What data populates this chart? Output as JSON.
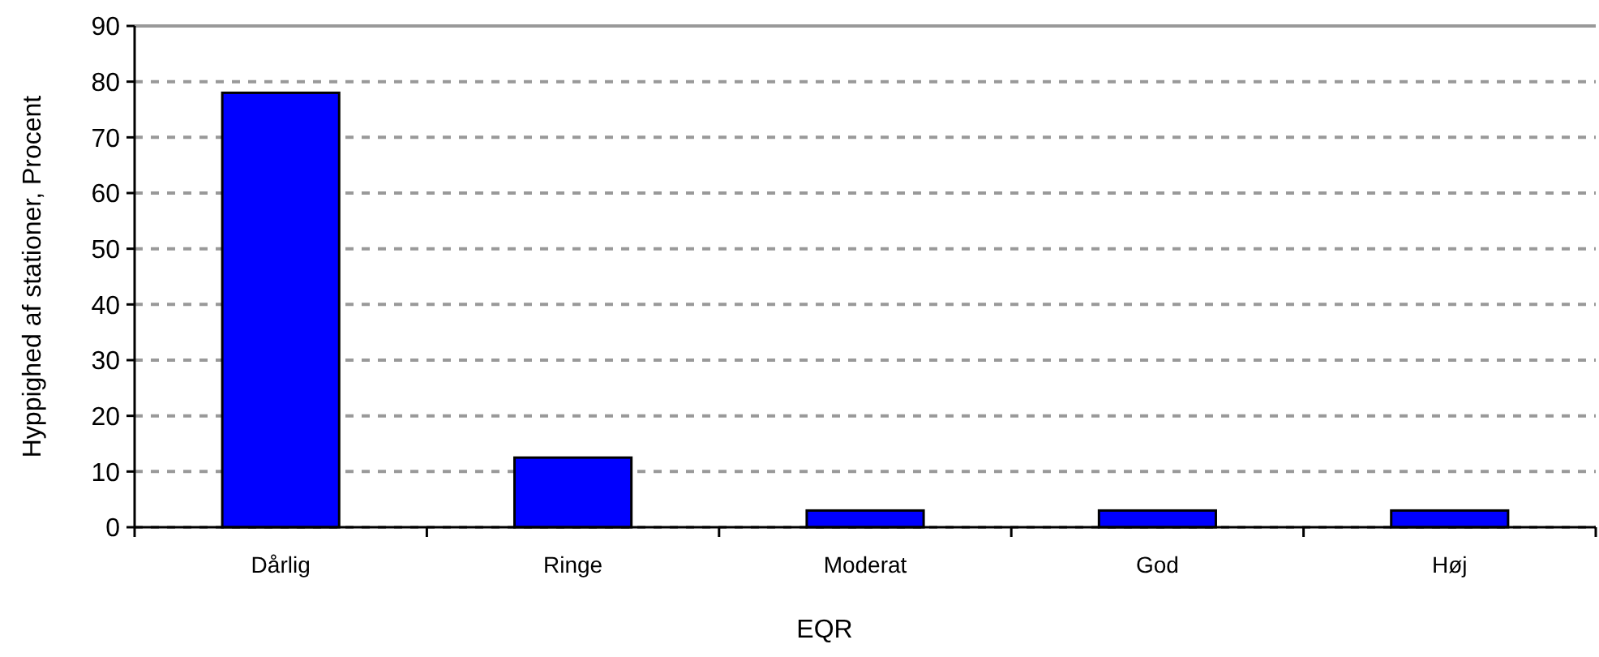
{
  "chart_data": {
    "type": "bar",
    "xlabel": "EQR",
    "ylabel": "Hyppighed af stationer, Procent",
    "categories": [
      "Dårlig",
      "Ringe",
      "Moderat",
      "God",
      "Høj"
    ],
    "values": [
      78,
      12.5,
      3,
      3,
      3
    ],
    "color": "#0000ff",
    "ylim": [
      0,
      90
    ],
    "yticks": [
      0,
      10,
      20,
      30,
      40,
      50,
      60,
      70,
      80,
      90
    ],
    "grid": "y"
  }
}
